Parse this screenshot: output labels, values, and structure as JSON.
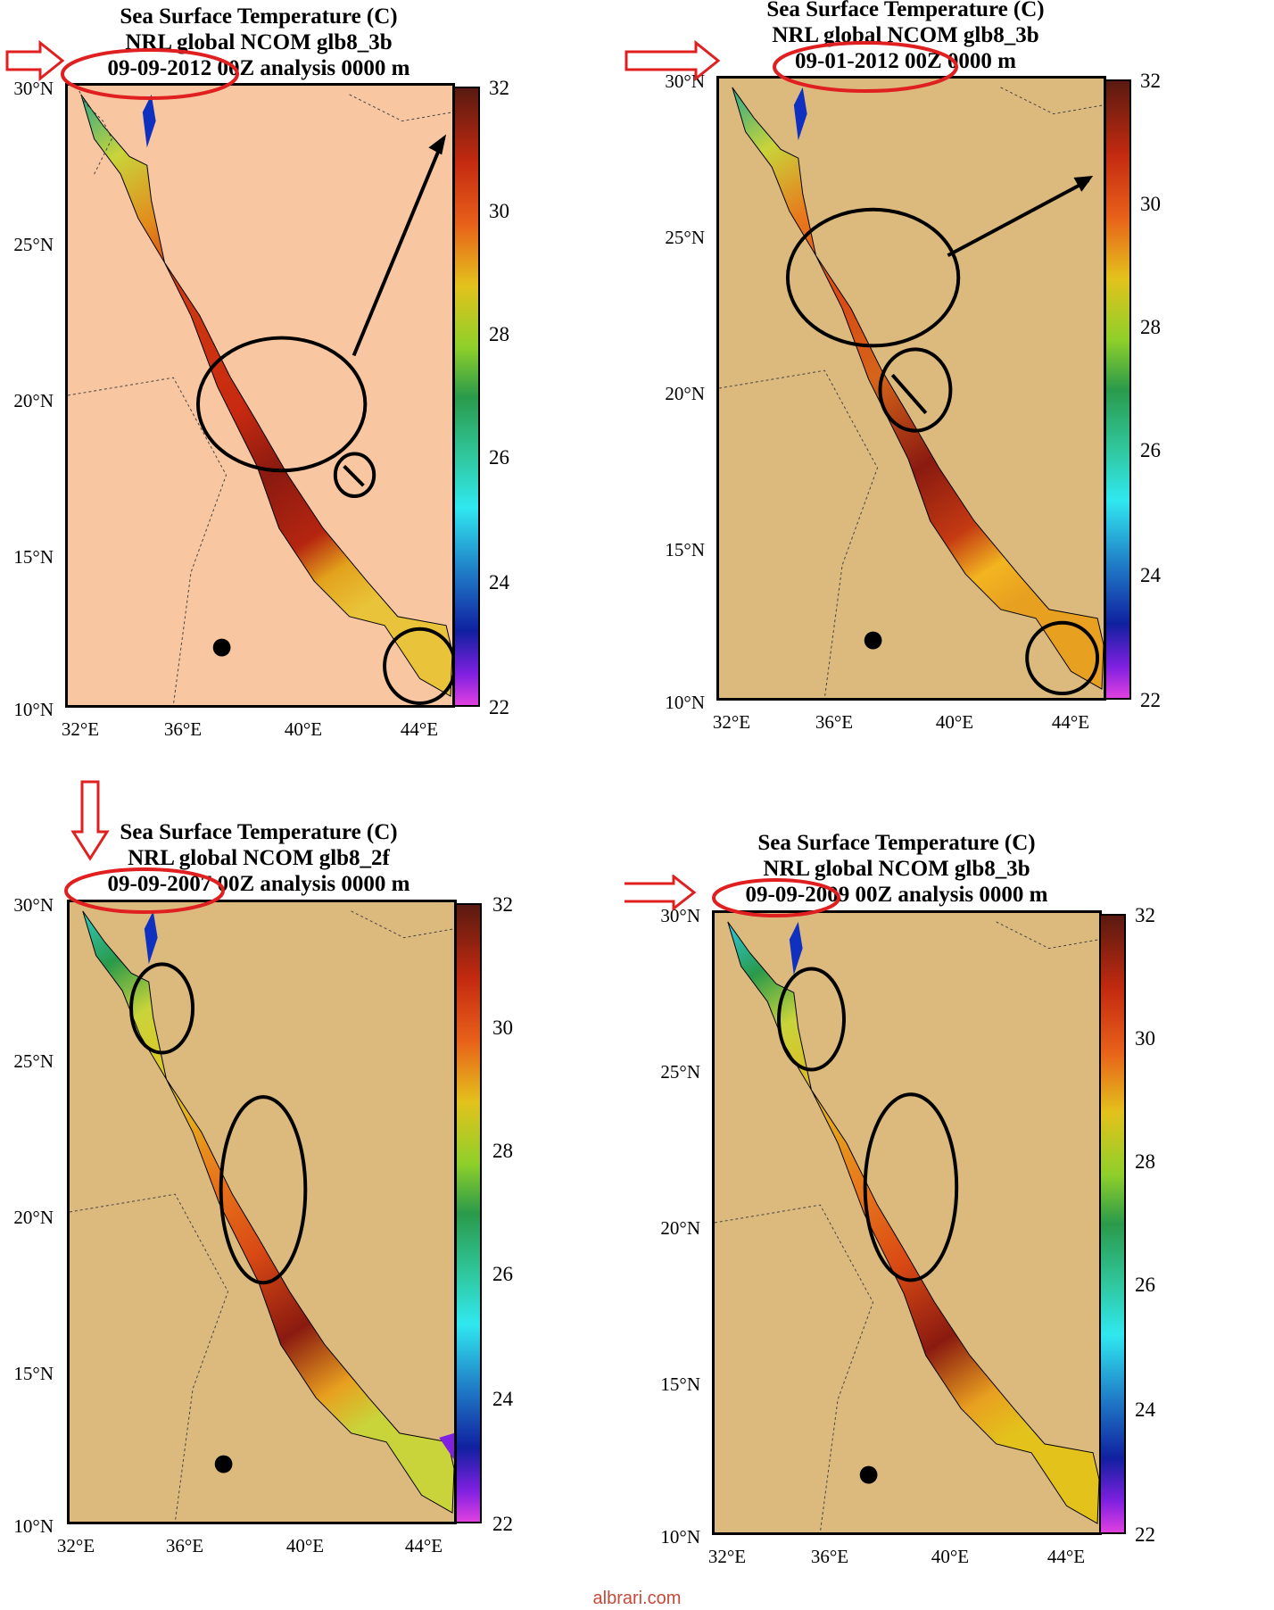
{
  "panels": [
    {
      "title1": "Sea Surface Temperature (C)",
      "title2": "NRL global NCOM glb8_3b",
      "title3": "09-09-2012 00Z analysis   0000 m"
    },
    {
      "title1": "Sea Surface Temperature (C)",
      "title2": "NRL global NCOM glb8_3b",
      "title3": "09-01-2012 00Z   0000 m"
    },
    {
      "title1": "Sea Surface Temperature (C)",
      "title2": "NRL global NCOM glb8_2f",
      "title3": "09-09-2007 00Z analysis   0000 m"
    },
    {
      "title1": "Sea Surface Temperature (C)",
      "title2": "NRL global NCOM glb8_3b",
      "title3": "09-09-2009 00Z analysis   0000 m"
    }
  ],
  "lat_labels": [
    "30°N",
    "25°N",
    "20°N",
    "15°N",
    "10°N"
  ],
  "lon_labels": [
    "32°E",
    "36°E",
    "40°E",
    "44°E"
  ],
  "colorbar_labels": [
    "32",
    "30",
    "28",
    "26",
    "24",
    "22"
  ],
  "colors": {
    "land_2012": "#f8c6a0",
    "land_other": "#dcb97c",
    "annotation_red": "#e02020"
  },
  "watermark": "albrari.com"
}
